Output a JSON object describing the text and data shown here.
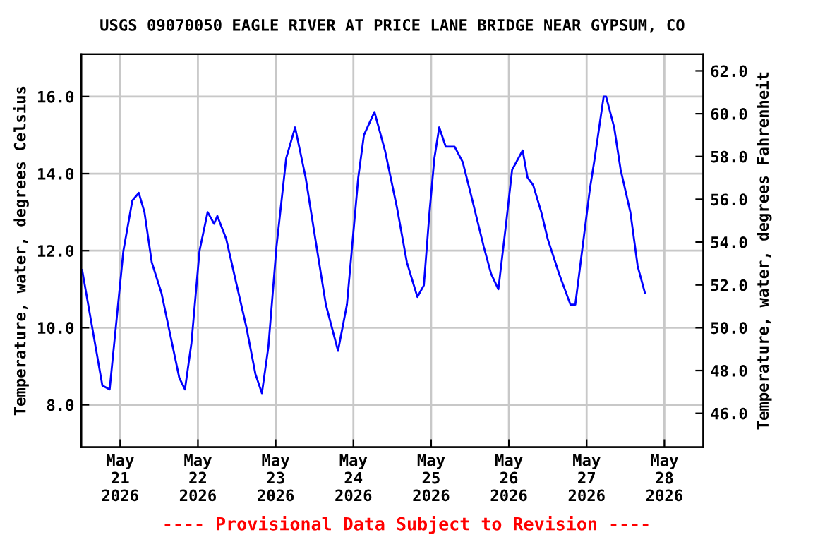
{
  "chart_data": {
    "type": "line",
    "title": "USGS 09070050 EAGLE RIVER AT PRICE LANE BRIDGE NEAR GYPSUM, CO",
    "ylabel": "Temperature, water, degrees Celsius",
    "y2label": "Temperature, water, degrees Fahrenheit",
    "annotations": [
      "---- Provisional Data Subject to Revision ----"
    ],
    "x": [
      "2026-05-20T12:15",
      "2026-05-20T18:30",
      "2026-05-20T20:45",
      "2026-05-21T01:00",
      "2026-05-21T03:45",
      "2026-05-21T05:45",
      "2026-05-21T07:30",
      "2026-05-21T09:45",
      "2026-05-21T12:45",
      "2026-05-21T15:30",
      "2026-05-21T18:15",
      "2026-05-21T20:00",
      "2026-05-21T22:00",
      "2026-05-22T00:30",
      "2026-05-22T03:00",
      "2026-05-22T05:00",
      "2026-05-22T06:00",
      "2026-05-22T08:45",
      "2026-05-22T12:00",
      "2026-05-22T15:00",
      "2026-05-22T17:45",
      "2026-05-22T19:45",
      "2026-05-22T21:45",
      "2026-05-23T00:15",
      "2026-05-23T03:15",
      "2026-05-23T06:00",
      "2026-05-23T09:15",
      "2026-05-23T12:15",
      "2026-05-23T15:30",
      "2026-05-23T19:15",
      "2026-05-23T22:00",
      "2026-05-24T01:30",
      "2026-05-24T03:15",
      "2026-05-24T06:30",
      "2026-05-24T09:45",
      "2026-05-24T13:30",
      "2026-05-24T16:30",
      "2026-05-24T19:45",
      "2026-05-24T21:45",
      "2026-05-24T23:30",
      "2026-05-25T01:00",
      "2026-05-25T02:30",
      "2026-05-25T04:30",
      "2026-05-25T07:15",
      "2026-05-25T09:45",
      "2026-05-25T12:45",
      "2026-05-25T16:15",
      "2026-05-25T18:30",
      "2026-05-25T20:45",
      "2026-05-25T23:00",
      "2026-05-26T01:00",
      "2026-05-26T04:15",
      "2026-05-26T05:45",
      "2026-05-26T07:30",
      "2026-05-26T10:00",
      "2026-05-26T12:00",
      "2026-05-26T15:30",
      "2026-05-26T19:00",
      "2026-05-26T20:30",
      "2026-05-26T22:45",
      "2026-05-27T01:00",
      "2026-05-27T02:30",
      "2026-05-27T05:15",
      "2026-05-27T06:00",
      "2026-05-27T08:30",
      "2026-05-27T10:30",
      "2026-05-27T13:30",
      "2026-05-27T15:45",
      "2026-05-27T18:00"
    ],
    "series": [
      {
        "color": "#0000ff",
        "values": [
          11.5,
          8.5,
          8.4,
          12.0,
          13.3,
          13.5,
          13.0,
          11.7,
          10.9,
          9.8,
          8.7,
          8.4,
          9.6,
          12.0,
          13.0,
          12.7,
          12.9,
          12.3,
          11.1,
          10.0,
          8.8,
          8.3,
          9.5,
          12.1,
          14.4,
          15.2,
          13.9,
          12.3,
          10.6,
          9.4,
          10.6,
          13.9,
          15.0,
          15.6,
          14.6,
          13.1,
          11.7,
          10.8,
          11.1,
          13.0,
          14.4,
          15.2,
          14.7,
          14.7,
          14.3,
          13.3,
          12.1,
          11.4,
          11.0,
          12.6,
          14.1,
          14.6,
          13.9,
          13.7,
          13.0,
          12.3,
          11.4,
          10.6,
          10.6,
          12.1,
          13.6,
          14.4,
          16.0,
          16.0,
          15.2,
          14.1,
          13.0,
          11.6,
          10.9
        ]
      }
    ],
    "xlim": [
      "2026-05-20T12:00",
      "2026-05-28T12:00"
    ],
    "xticks": [
      {
        "value": "2026-05-21",
        "label": "May\n21\n2026"
      },
      {
        "value": "2026-05-22",
        "label": "May\n22\n2026"
      },
      {
        "value": "2026-05-23",
        "label": "May\n23\n2026"
      },
      {
        "value": "2026-05-24",
        "label": "May\n24\n2026"
      },
      {
        "value": "2026-05-25",
        "label": "May\n25\n2026"
      },
      {
        "value": "2026-05-26",
        "label": "May\n26\n2026"
      },
      {
        "value": "2026-05-27",
        "label": "May\n27\n2026"
      },
      {
        "value": "2026-05-28",
        "label": "May\n28\n2026"
      }
    ],
    "ylim": [
      6.9,
      17.1
    ],
    "yticks": [
      {
        "value": 8,
        "label": "8.0"
      },
      {
        "value": 10,
        "label": "10.0"
      },
      {
        "value": 12,
        "label": "12.0"
      },
      {
        "value": 14,
        "label": "14.0"
      },
      {
        "value": 16,
        "label": "16.0"
      }
    ],
    "y2lim": [
      44.42,
      62.78
    ],
    "y2ticks": [
      {
        "value": 46,
        "label": "46.0"
      },
      {
        "value": 48,
        "label": "48.0"
      },
      {
        "value": 50,
        "label": "50.0"
      },
      {
        "value": 52,
        "label": "52.0"
      },
      {
        "value": 54,
        "label": "54.0"
      },
      {
        "value": 56,
        "label": "56.0"
      },
      {
        "value": 58,
        "label": "58.0"
      },
      {
        "value": 60,
        "label": "60.0"
      },
      {
        "value": 62,
        "label": "62.0"
      }
    ],
    "grid": true,
    "legend": false
  }
}
